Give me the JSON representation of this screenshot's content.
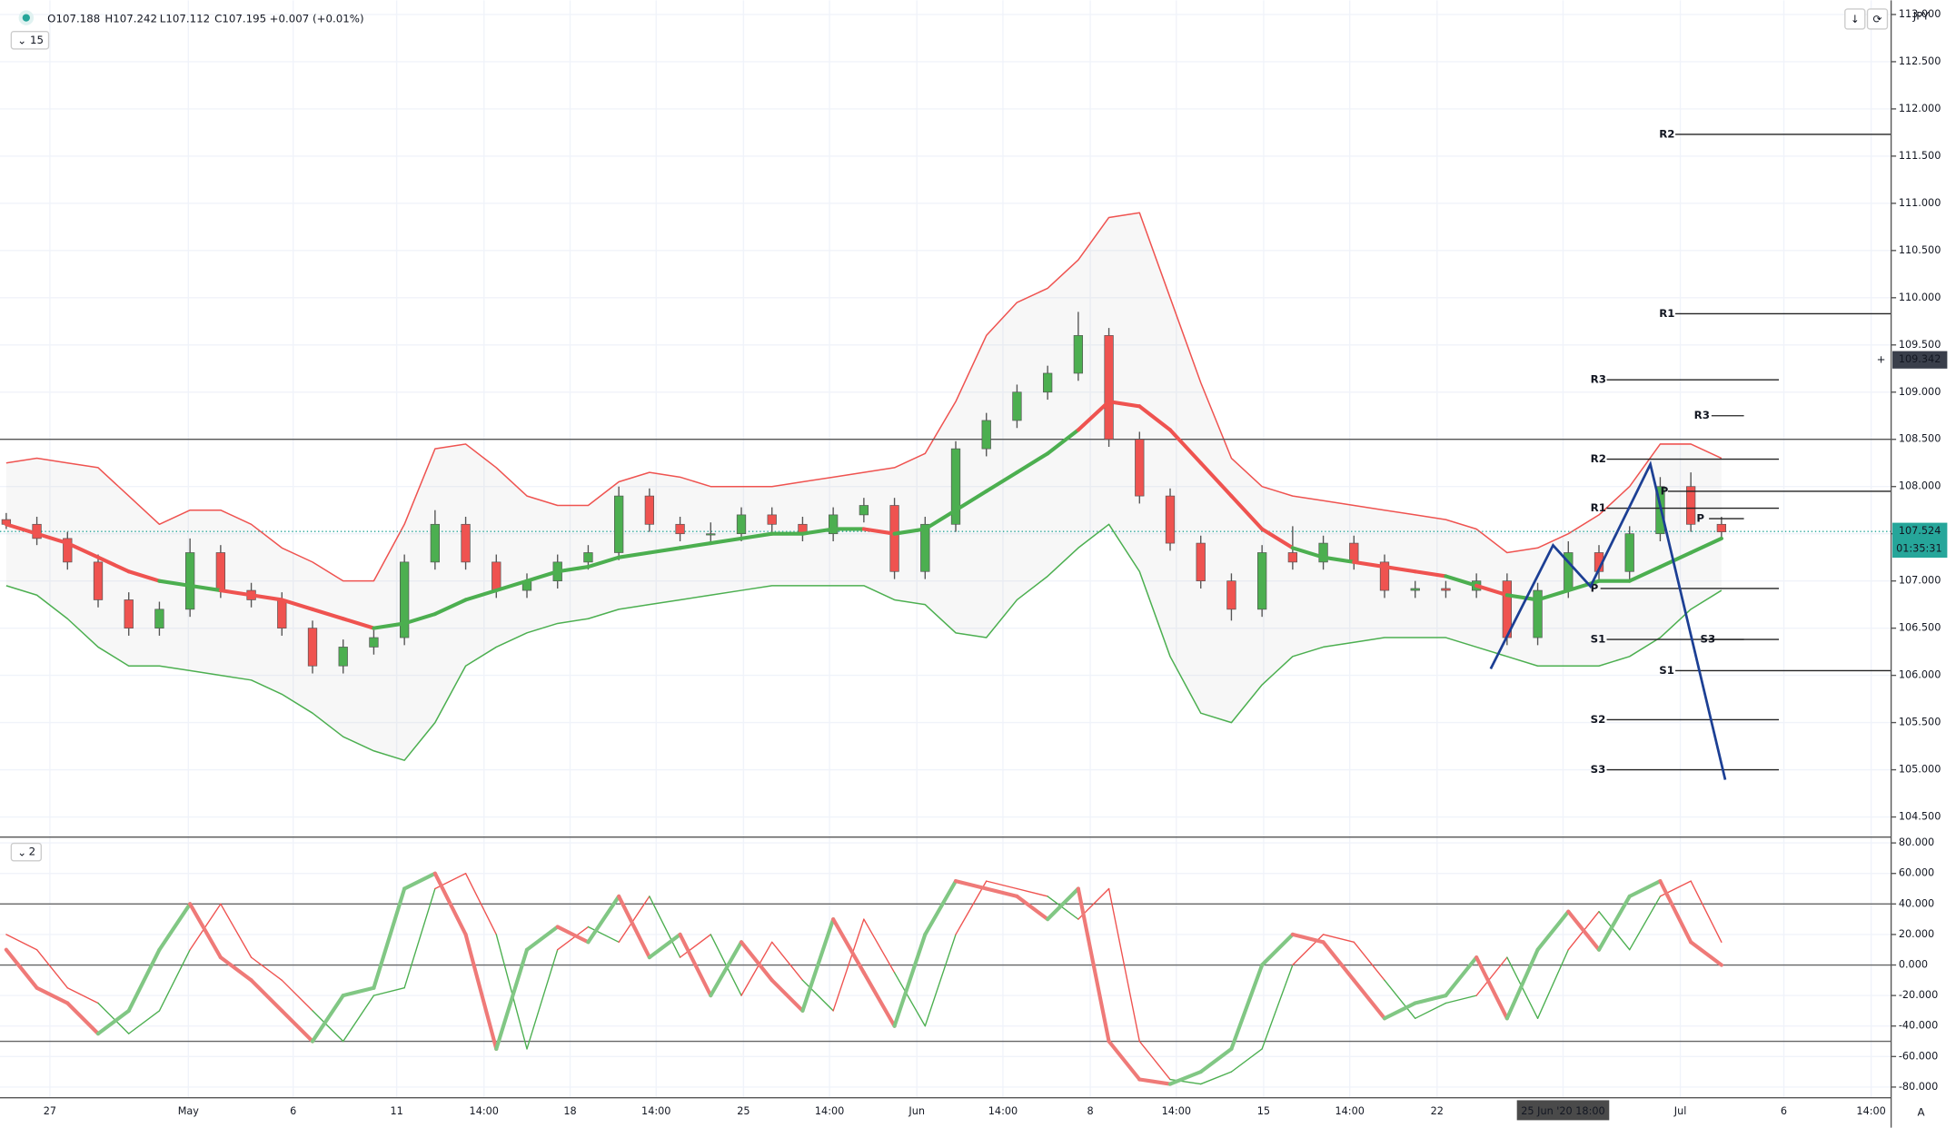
{
  "chart_data": {
    "type": "candlestick",
    "header": [
      "O107.188",
      "H107.242",
      "L107.112",
      "C107.195",
      "+0.007 (+0.01%)"
    ],
    "interval": "15",
    "pane2_label": "2",
    "currency": "JPY",
    "axis_button": "A",
    "ylim": [
      104.3,
      113.15
    ],
    "yticks": [
      {
        "value": 113,
        "label": "113.000"
      },
      {
        "value": 112.5,
        "label": "112.500"
      },
      {
        "value": 112,
        "label": "112.000"
      },
      {
        "value": 111.5,
        "label": "111.500"
      },
      {
        "value": 111,
        "label": "111.000"
      },
      {
        "value": 110.5,
        "label": "110.500"
      },
      {
        "value": 110,
        "label": "110.000"
      },
      {
        "value": 109.5,
        "label": "109.500"
      },
      {
        "value": 109,
        "label": "109.000"
      },
      {
        "value": 108.5,
        "label": "108.500"
      },
      {
        "value": 108,
        "label": "108.000"
      },
      {
        "value": 107.5,
        "label": "107.500"
      },
      {
        "value": 107,
        "label": "107.000"
      },
      {
        "value": 106.5,
        "label": "106.500"
      },
      {
        "value": 106,
        "label": "106.000"
      },
      {
        "value": 105.5,
        "label": "105.500"
      },
      {
        "value": 105,
        "label": "105.000"
      },
      {
        "value": 104.5,
        "label": "104.500"
      }
    ],
    "categories": [
      "27",
      "May",
      "6",
      "11",
      "14:00",
      "18",
      "14:00",
      "25",
      "14:00",
      "Jun",
      "14:00",
      "8",
      "14:00",
      "15",
      "14:00",
      "22",
      "25 Jun '20  18:00",
      "Jul",
      "6",
      "14:00"
    ],
    "grid": true,
    "horizontal_line": 108.5,
    "current_price": {
      "value": 107.524,
      "label": "107.524",
      "countdown": "01:35:31",
      "color": "#26a69a"
    },
    "crosshair_price": {
      "value": 109.342,
      "label": "109.342"
    },
    "up_color": "#4caf50",
    "down_color": "#ef5350",
    "candles": [
      [
        107.65,
        107.72,
        107.55,
        107.6
      ],
      [
        107.6,
        107.68,
        107.38,
        107.45
      ],
      [
        107.45,
        107.52,
        107.12,
        107.2
      ],
      [
        107.2,
        107.28,
        106.72,
        106.8
      ],
      [
        106.8,
        106.88,
        106.42,
        106.5
      ],
      [
        106.5,
        106.78,
        106.42,
        106.7
      ],
      [
        106.7,
        107.45,
        106.62,
        107.3
      ],
      [
        107.3,
        107.38,
        106.82,
        106.9
      ],
      [
        106.9,
        106.98,
        106.72,
        106.8
      ],
      [
        106.8,
        106.88,
        106.42,
        106.5
      ],
      [
        106.5,
        106.58,
        106.02,
        106.1
      ],
      [
        106.1,
        106.38,
        106.02,
        106.3
      ],
      [
        106.3,
        106.48,
        106.22,
        106.4
      ],
      [
        106.4,
        107.28,
        106.32,
        107.2
      ],
      [
        107.2,
        107.75,
        107.12,
        107.6
      ],
      [
        107.6,
        107.68,
        107.12,
        107.2
      ],
      [
        107.2,
        107.28,
        106.82,
        106.9
      ],
      [
        106.9,
        107.08,
        106.82,
        107.0
      ],
      [
        107.0,
        107.28,
        106.92,
        107.2
      ],
      [
        107.2,
        107.38,
        107.12,
        107.3
      ],
      [
        107.3,
        108.0,
        107.22,
        107.9
      ],
      [
        107.9,
        107.98,
        107.52,
        107.6
      ],
      [
        107.6,
        107.68,
        107.42,
        107.5
      ],
      [
        107.5,
        107.62,
        107.42,
        107.5
      ],
      [
        107.5,
        107.78,
        107.42,
        107.7
      ],
      [
        107.7,
        107.78,
        107.52,
        107.6
      ],
      [
        107.6,
        107.68,
        107.42,
        107.5
      ],
      [
        107.5,
        107.78,
        107.42,
        107.7
      ],
      [
        107.7,
        107.88,
        107.62,
        107.8
      ],
      [
        107.8,
        107.88,
        107.02,
        107.1
      ],
      [
        107.1,
        107.68,
        107.02,
        107.6
      ],
      [
        107.6,
        108.48,
        107.52,
        108.4
      ],
      [
        108.4,
        108.78,
        108.32,
        108.7
      ],
      [
        108.7,
        109.08,
        108.62,
        109.0
      ],
      [
        109.0,
        109.28,
        108.92,
        109.2
      ],
      [
        109.2,
        109.85,
        109.12,
        109.6
      ],
      [
        109.6,
        109.68,
        108.42,
        108.5
      ],
      [
        108.5,
        108.58,
        107.82,
        107.9
      ],
      [
        107.9,
        107.98,
        107.32,
        107.4
      ],
      [
        107.4,
        107.48,
        106.92,
        107.0
      ],
      [
        107.0,
        107.08,
        106.58,
        106.7
      ],
      [
        106.7,
        107.38,
        106.62,
        107.3
      ],
      [
        107.3,
        107.58,
        107.12,
        107.2
      ],
      [
        107.2,
        107.48,
        107.12,
        107.4
      ],
      [
        107.4,
        107.48,
        107.12,
        107.2
      ],
      [
        107.2,
        107.28,
        106.82,
        106.9
      ],
      [
        106.9,
        107.0,
        106.82,
        106.92
      ],
      [
        106.92,
        107.0,
        106.82,
        106.9
      ],
      [
        106.9,
        107.08,
        106.82,
        107.0
      ],
      [
        107.0,
        107.08,
        106.32,
        106.4
      ],
      [
        106.4,
        106.98,
        106.32,
        106.9
      ],
      [
        106.9,
        107.42,
        106.82,
        107.3
      ],
      [
        107.3,
        107.38,
        107.02,
        107.1
      ],
      [
        107.1,
        107.58,
        107.02,
        107.5
      ],
      [
        107.5,
        108.1,
        107.42,
        108.0
      ],
      [
        108.0,
        108.15,
        107.52,
        107.6
      ],
      [
        107.6,
        107.68,
        107.45,
        107.52
      ]
    ],
    "moving_average": [
      107.6,
      107.5,
      107.4,
      107.25,
      107.1,
      107.0,
      106.95,
      106.9,
      106.85,
      106.8,
      106.7,
      106.6,
      106.5,
      106.55,
      106.65,
      106.8,
      106.9,
      107.0,
      107.1,
      107.15,
      107.25,
      107.3,
      107.35,
      107.4,
      107.45,
      107.5,
      107.5,
      107.55,
      107.55,
      107.5,
      107.55,
      107.75,
      107.95,
      108.15,
      108.35,
      108.6,
      108.9,
      108.85,
      108.6,
      108.25,
      107.9,
      107.55,
      107.35,
      107.25,
      107.2,
      107.15,
      107.1,
      107.05,
      106.95,
      106.85,
      106.8,
      106.9,
      107.0,
      107.0,
      107.15,
      107.3,
      107.45
    ],
    "upper_band": [
      108.25,
      108.3,
      108.25,
      108.2,
      107.9,
      107.6,
      107.75,
      107.75,
      107.6,
      107.35,
      107.2,
      107.0,
      107.0,
      107.6,
      108.4,
      108.45,
      108.2,
      107.9,
      107.8,
      107.8,
      108.05,
      108.15,
      108.1,
      108.0,
      108.0,
      108.0,
      108.05,
      108.1,
      108.15,
      108.2,
      108.35,
      108.9,
      109.6,
      109.95,
      110.1,
      110.4,
      110.85,
      110.9,
      110.0,
      109.1,
      108.3,
      108.0,
      107.9,
      107.85,
      107.8,
      107.75,
      107.7,
      107.65,
      107.55,
      107.3,
      107.35,
      107.5,
      107.7,
      108.0,
      108.45,
      108.45,
      108.3
    ],
    "lower_band": [
      106.95,
      106.85,
      106.6,
      106.3,
      106.1,
      106.1,
      106.05,
      106.0,
      105.95,
      105.8,
      105.6,
      105.35,
      105.2,
      105.1,
      105.5,
      106.1,
      106.3,
      106.45,
      106.55,
      106.6,
      106.7,
      106.75,
      106.8,
      106.85,
      106.9,
      106.95,
      106.95,
      106.95,
      106.95,
      106.8,
      106.75,
      106.45,
      106.4,
      106.8,
      107.05,
      107.35,
      107.6,
      107.1,
      106.2,
      105.6,
      105.5,
      105.9,
      106.2,
      106.3,
      106.35,
      106.4,
      106.4,
      106.4,
      106.3,
      106.2,
      106.1,
      106.1,
      106.1,
      106.2,
      106.4,
      106.7,
      106.9
    ],
    "pivots": [
      {
        "label": "R2",
        "value": 111.73
      },
      {
        "label": "R1",
        "value": 109.83
      },
      {
        "label": "R3",
        "value": 109.13
      },
      {
        "label": "R3",
        "value": 108.75
      },
      {
        "label": "R2",
        "value": 108.29
      },
      {
        "label": "P",
        "value": 107.95
      },
      {
        "label": "R1",
        "value": 107.77
      },
      {
        "label": "P",
        "value": 107.66
      },
      {
        "label": "P",
        "value": 106.92
      },
      {
        "label": "S1",
        "value": 106.38
      },
      {
        "label": "S3",
        "value": 106.38
      },
      {
        "label": "S1",
        "value": 106.05
      },
      {
        "label": "S2",
        "value": 105.53
      },
      {
        "label": "S3",
        "value": 105.0
      }
    ],
    "oscillator": {
      "ylim": [
        -87,
        83
      ],
      "yticks": [
        {
          "value": 80,
          "label": "80.000"
        },
        {
          "value": 60,
          "label": "60.000"
        },
        {
          "value": 40,
          "label": "40.000"
        },
        {
          "value": 20,
          "label": "20.000"
        },
        {
          "value": 0,
          "label": "0.000"
        },
        {
          "value": -20,
          "label": "-20.000"
        },
        {
          "value": -40,
          "label": "-40.000"
        },
        {
          "value": -60,
          "label": "-60.000"
        },
        {
          "value": -80,
          "label": "-80.000"
        }
      ],
      "levels": [
        40,
        0,
        -50
      ],
      "k": [
        10,
        -15,
        -25,
        -45,
        -30,
        10,
        40,
        5,
        -10,
        -30,
        -50,
        -20,
        -15,
        50,
        60,
        20,
        -55,
        10,
        25,
        15,
        45,
        5,
        20,
        -20,
        15,
        -10,
        -30,
        30,
        -5,
        -40,
        20,
        55,
        50,
        45,
        30,
        50,
        -50,
        -75,
        -78,
        -70,
        -55,
        0,
        20,
        15,
        -10,
        -35,
        -25,
        -20,
        5,
        -35,
        10,
        35,
        10,
        45,
        55,
        15,
        0
      ],
      "d": [
        20,
        10,
        -15,
        -25,
        -45,
        -30,
        10,
        40,
        5,
        -10,
        -30,
        -50,
        -20,
        -15,
        50,
        60,
        20,
        -55,
        10,
        25,
        15,
        45,
        5,
        20,
        -20,
        15,
        -10,
        -30,
        30,
        -5,
        -40,
        20,
        55,
        50,
        45,
        30,
        50,
        -50,
        -75,
        -78,
        -70,
        -55,
        0,
        20,
        15,
        -10,
        -35,
        -25,
        -20,
        5,
        -35,
        10,
        35,
        10,
        45,
        55,
        15
      ]
    }
  }
}
